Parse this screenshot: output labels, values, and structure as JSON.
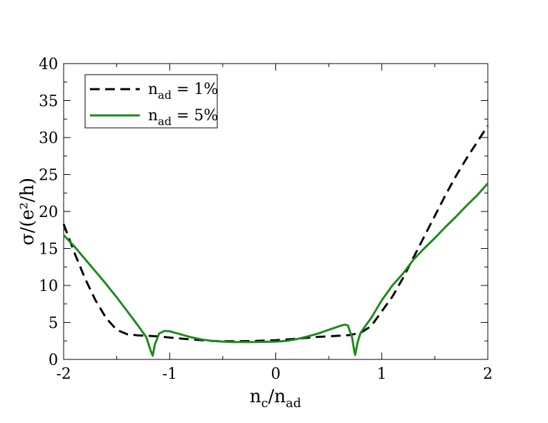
{
  "chart_data": {
    "type": "line",
    "xlabel": "n",
    "xlabel_sub": "c",
    "xlabel_sep": "/n",
    "xlabel_sub2": "ad",
    "ylabel": "σ/(e²/h)",
    "xlim": [
      -2,
      2
    ],
    "ylim": [
      0,
      40
    ],
    "x_ticks": [
      -2,
      -1,
      0,
      1,
      2
    ],
    "y_ticks": [
      0,
      5,
      10,
      15,
      20,
      25,
      30,
      35,
      40
    ],
    "x_tick_labels": [
      "-2",
      "-1",
      "0",
      "1",
      "2"
    ],
    "y_tick_labels": [
      "0",
      "5",
      "10",
      "15",
      "20",
      "25",
      "30",
      "35",
      "40"
    ],
    "legend_position": "top-left",
    "grid": false,
    "series": [
      {
        "name_main": "n",
        "name_sub": "ad",
        "name_rest": " = 1%",
        "color": "#000000",
        "style": "dashed",
        "points": [
          [
            -2.0,
            18.3
          ],
          [
            -1.9,
            14.5
          ],
          [
            -1.8,
            11.0
          ],
          [
            -1.7,
            8.0
          ],
          [
            -1.6,
            5.6
          ],
          [
            -1.5,
            4.0
          ],
          [
            -1.4,
            3.4
          ],
          [
            -1.3,
            3.25
          ],
          [
            -1.2,
            3.2
          ],
          [
            -1.1,
            3.1
          ],
          [
            -1.0,
            2.95
          ],
          [
            -0.8,
            2.7
          ],
          [
            -0.6,
            2.5
          ],
          [
            -0.4,
            2.45
          ],
          [
            -0.2,
            2.5
          ],
          [
            0.0,
            2.6
          ],
          [
            0.2,
            2.8
          ],
          [
            0.4,
            3.05
          ],
          [
            0.6,
            3.2
          ],
          [
            0.7,
            3.3
          ],
          [
            0.8,
            3.6
          ],
          [
            0.9,
            4.5
          ],
          [
            1.0,
            6.5
          ],
          [
            1.1,
            8.5
          ],
          [
            1.2,
            11.0
          ],
          [
            1.3,
            13.8
          ],
          [
            1.4,
            16.6
          ],
          [
            1.5,
            19.4
          ],
          [
            1.6,
            22.2
          ],
          [
            1.7,
            24.8
          ],
          [
            1.8,
            27.2
          ],
          [
            1.9,
            29.4
          ],
          [
            2.0,
            31.6
          ]
        ]
      },
      {
        "name_main": "n",
        "name_sub": "ad",
        "name_rest": " = 5%",
        "color": "#1a8a1a",
        "style": "solid",
        "points": [
          [
            -2.0,
            16.8
          ],
          [
            -1.9,
            15.3
          ],
          [
            -1.8,
            13.6
          ],
          [
            -1.7,
            11.9
          ],
          [
            -1.6,
            10.2
          ],
          [
            -1.5,
            8.4
          ],
          [
            -1.4,
            6.5
          ],
          [
            -1.3,
            4.6
          ],
          [
            -1.22,
            3.0
          ],
          [
            -1.18,
            1.2
          ],
          [
            -1.16,
            0.5
          ],
          [
            -1.14,
            2.0
          ],
          [
            -1.1,
            3.5
          ],
          [
            -1.05,
            3.85
          ],
          [
            -1.0,
            3.8
          ],
          [
            -0.9,
            3.4
          ],
          [
            -0.8,
            3.0
          ],
          [
            -0.7,
            2.7
          ],
          [
            -0.6,
            2.5
          ],
          [
            -0.5,
            2.4
          ],
          [
            -0.4,
            2.35
          ],
          [
            -0.2,
            2.35
          ],
          [
            0.0,
            2.4
          ],
          [
            0.1,
            2.5
          ],
          [
            0.2,
            2.75
          ],
          [
            0.3,
            3.1
          ],
          [
            0.4,
            3.5
          ],
          [
            0.5,
            4.0
          ],
          [
            0.6,
            4.5
          ],
          [
            0.65,
            4.7
          ],
          [
            0.68,
            4.6
          ],
          [
            0.72,
            3.0
          ],
          [
            0.74,
            1.2
          ],
          [
            0.75,
            0.6
          ],
          [
            0.77,
            2.2
          ],
          [
            0.8,
            3.6
          ],
          [
            0.85,
            4.6
          ],
          [
            0.9,
            5.6
          ],
          [
            1.0,
            8.0
          ],
          [
            1.1,
            10.0
          ],
          [
            1.2,
            11.6
          ],
          [
            1.3,
            13.5
          ],
          [
            1.4,
            15.0
          ],
          [
            1.5,
            16.4
          ],
          [
            1.6,
            17.9
          ],
          [
            1.7,
            19.3
          ],
          [
            1.8,
            20.8
          ],
          [
            1.9,
            22.2
          ],
          [
            2.0,
            23.8
          ]
        ]
      }
    ]
  }
}
